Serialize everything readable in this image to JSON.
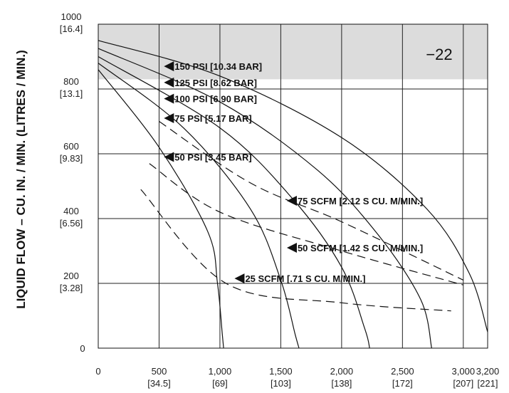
{
  "chart_data": {
    "type": "line",
    "title": "",
    "model_label": "−22",
    "ylabel": "LIQUID FLOW – CU. IN. / MIN. (LITRES / MIN.)",
    "xlabel": "",
    "xlim": [
      0,
      3200
    ],
    "ylim": [
      0,
      1000
    ],
    "grid": true,
    "shaded_band": [
      830,
      1000
    ],
    "shade_color": "#dcdcdc",
    "x_ticks": [
      {
        "value": 0,
        "label": "0",
        "sub": ""
      },
      {
        "value": 500,
        "label": "500",
        "sub": "[34.5]"
      },
      {
        "value": 1000,
        "label": "1,000",
        "sub": "[69]"
      },
      {
        "value": 1500,
        "label": "1,500",
        "sub": "[103]"
      },
      {
        "value": 2000,
        "label": "2,000",
        "sub": "[138]"
      },
      {
        "value": 2500,
        "label": "2,500",
        "sub": "[172]"
      },
      {
        "value": 3000,
        "label": "3,000",
        "sub": "[207]"
      },
      {
        "value": 3200,
        "label": "3,200",
        "sub": "[221]"
      }
    ],
    "y_ticks": [
      {
        "value": 0,
        "label": "0",
        "sub": ""
      },
      {
        "value": 200,
        "label": "200",
        "sub": "[3.28]"
      },
      {
        "value": 400,
        "label": "400",
        "sub": "[6.56]"
      },
      {
        "value": 600,
        "label": "600",
        "sub": "[9.83]"
      },
      {
        "value": 800,
        "label": "800",
        "sub": "[13.1]"
      },
      {
        "value": 1000,
        "label": "1000",
        "sub": "[16.4]"
      }
    ],
    "pressure_series": [
      {
        "name": "150 PSI [10.34 BAR]",
        "points": [
          [
            0,
            950
          ],
          [
            1000,
            840
          ],
          [
            2000,
            650
          ],
          [
            2700,
            430
          ],
          [
            3050,
            230
          ],
          [
            3200,
            50
          ]
        ]
      },
      {
        "name": "125 PSI [8.62 BAR]",
        "points": [
          [
            0,
            925
          ],
          [
            1000,
            760
          ],
          [
            1800,
            550
          ],
          [
            2300,
            350
          ],
          [
            2650,
            150
          ],
          [
            2740,
            0
          ]
        ]
      },
      {
        "name": "100 PSI [6.90 BAR]",
        "points": [
          [
            0,
            900
          ],
          [
            1000,
            680
          ],
          [
            1600,
            460
          ],
          [
            2000,
            250
          ],
          [
            2190,
            60
          ],
          [
            2230,
            0
          ]
        ]
      },
      {
        "name": "75 PSI [5.17 BAR]",
        "points": [
          [
            0,
            880
          ],
          [
            700,
            680
          ],
          [
            1250,
            430
          ],
          [
            1500,
            210
          ],
          [
            1620,
            40
          ],
          [
            1650,
            0
          ]
        ]
      },
      {
        "name": "50 PSI [3.45 BAR]",
        "points": [
          [
            0,
            860
          ],
          [
            500,
            620
          ],
          [
            900,
            360
          ],
          [
            980,
            200
          ],
          [
            1020,
            40
          ],
          [
            1030,
            0
          ]
        ]
      }
    ],
    "air_series": [
      {
        "name": "75 SCFM [2.12 S CU. M/MIN.]",
        "points": [
          [
            500,
            700
          ],
          [
            1250,
            510
          ],
          [
            2000,
            390
          ],
          [
            3000,
            210
          ]
        ]
      },
      {
        "name": "50 SCFM [1.42 S CU. M/MIN.]",
        "points": [
          [
            420,
            570
          ],
          [
            1000,
            420
          ],
          [
            2000,
            300
          ],
          [
            3000,
            195
          ]
        ]
      },
      {
        "name": "25 SCFM [.71 S CU. M/MIN.]",
        "points": [
          [
            350,
            490
          ],
          [
            1050,
            200
          ],
          [
            2000,
            140
          ],
          [
            2900,
            115
          ]
        ]
      }
    ],
    "annotations": [
      {
        "text": "150 PSI [10.34 BAR]",
        "x": 540,
        "y": 870
      },
      {
        "text": "125 PSI [8.62 BAR]",
        "x": 540,
        "y": 820
      },
      {
        "text": "100 PSI [6.90 BAR]",
        "x": 540,
        "y": 770
      },
      {
        "text": "75 PSI [5.17 BAR]",
        "x": 540,
        "y": 710
      },
      {
        "text": "50 PSI [3.45 BAR]",
        "x": 540,
        "y": 590
      },
      {
        "text": "75 SCFM [2.12 S CU. M/MIN.]",
        "x": 1550,
        "y": 455
      },
      {
        "text": "50 SCFM [1.42 S CU. M/MIN.]",
        "x": 1550,
        "y": 310
      },
      {
        "text": "25 SCFM [.71 S CU. M/MIN.]",
        "x": 1120,
        "y": 215
      }
    ]
  }
}
